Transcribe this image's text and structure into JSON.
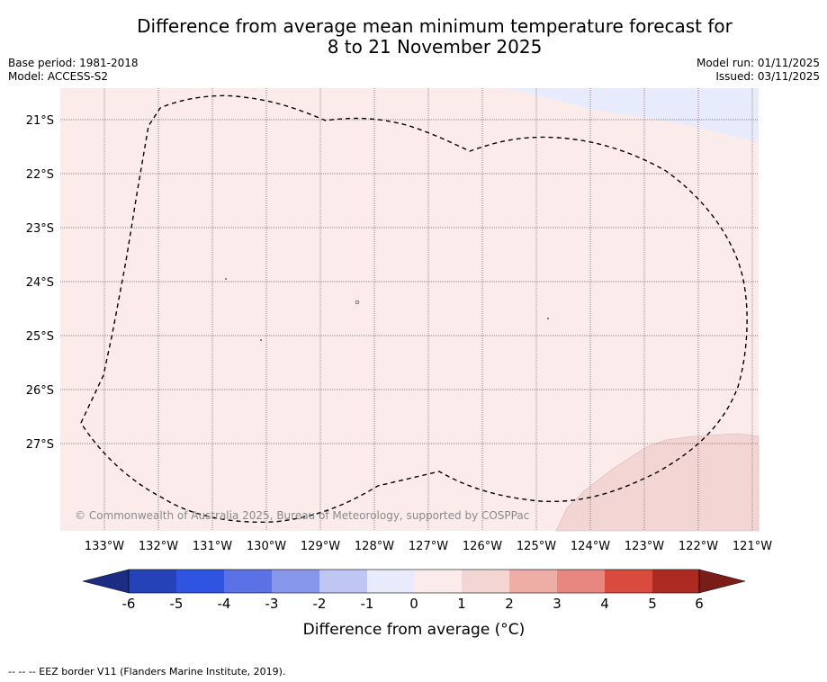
{
  "title": {
    "line1": "Difference from average mean minimum temperature forecast for",
    "line2": "8 to 21 November 2025"
  },
  "meta_left": {
    "base_period": "Base period: 1981-2018",
    "model": "Model: ACCESS-S2"
  },
  "meta_right": {
    "model_run": "Model run: 01/11/2025",
    "issued": "Issued: 03/11/2025"
  },
  "map": {
    "latitude_labels": [
      "21°S",
      "22°S",
      "23°S",
      "24°S",
      "25°S",
      "26°S",
      "27°S"
    ],
    "longitude_labels": [
      "133°W",
      "132°W",
      "131°W",
      "130°W",
      "129°W",
      "128°W",
      "127°W",
      "126°W",
      "125°W",
      "124°W",
      "123°W",
      "122°W",
      "121°W"
    ],
    "copyright": "© Commonwealth of Australia 2025, Bureau of Meteorology, supported by COSPPac",
    "colors": {
      "anomaly_0_to_1": "#fbeceb",
      "anomaly_1_to_2": "#f3d6d4",
      "anomaly_minus1_to_0": "#e8ebfb",
      "eez_border": "#000000"
    }
  },
  "colorbar": {
    "labels": [
      "-6",
      "-5",
      "-4",
      "-3",
      "-2",
      "-1",
      "0",
      "1",
      "2",
      "3",
      "4",
      "5",
      "6"
    ],
    "colors": [
      "#1b2c84",
      "#2542b8",
      "#3054e2",
      "#5b72e6",
      "#8797ec",
      "#bfc6f4",
      "#e8ebfb",
      "#fbeceb",
      "#f3d6d4",
      "#eeaea6",
      "#e8877f",
      "#da4b3f",
      "#ad2a22",
      "#7a1c17"
    ],
    "axis_label": "Difference from average (°C)"
  },
  "footer": {
    "eez_legend": "-- -- -- EEZ border V11 (Flanders Marine Institute, 2019)."
  }
}
